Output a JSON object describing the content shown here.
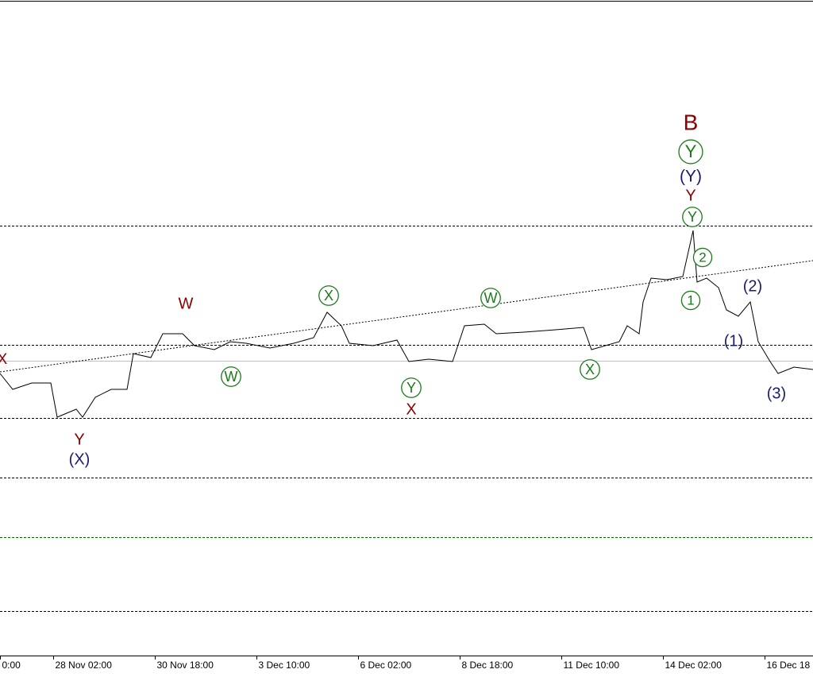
{
  "chart_data": {
    "type": "line",
    "x": [
      0,
      2,
      5,
      8,
      9,
      12,
      13,
      15,
      17.5,
      20,
      21,
      23.75,
      25.625,
      28.75,
      30.625,
      33.75,
      36.25,
      38.75,
      42.5,
      46.25,
      49.375,
      51.5,
      53.75,
      55,
      58.75,
      62.5,
      64.375,
      67.5,
      71.25,
      73.125,
      76.25,
      78.125,
      82.5,
      87.5,
      91.875,
      93.125,
      97.5,
      98.75,
      100.625,
      101.25,
      102.5,
      105,
      107.5,
      109.125,
      109.75,
      111.25,
      113.125,
      114.375,
      116.25,
      118.125,
      119.375,
      121.25,
      122.5,
      125,
      128
    ],
    "values": [
      355,
      335,
      343,
      343,
      300,
      310,
      300,
      325,
      335,
      335,
      380,
      375,
      405,
      405,
      390,
      385,
      395,
      393,
      387,
      393,
      400,
      432,
      415,
      393,
      390,
      397,
      370,
      373,
      370,
      415,
      417,
      405,
      407,
      410,
      413,
      385,
      395,
      415,
      405,
      445,
      475,
      473,
      477,
      535,
      470,
      475,
      463,
      435,
      427,
      445,
      395,
      370,
      355,
      363,
      360
    ],
    "color": "#000000",
    "xlim": [
      0,
      128
    ],
    "ylim": [
      0,
      825
    ],
    "xticks": [
      {
        "value": 0,
        "label": "0:00"
      },
      {
        "value": 8.375,
        "label": "28 Nov 02:00"
      },
      {
        "value": 24.375,
        "label": "30 Nov 18:00"
      },
      {
        "value": 40.375,
        "label": "3 Dec 10:00"
      },
      {
        "value": 56.375,
        "label": "6 Dec 02:00"
      },
      {
        "value": 72.375,
        "label": "8 Dec 18:00"
      },
      {
        "value": 88.375,
        "label": "11 Dec 10:00"
      },
      {
        "value": 104.375,
        "label": "14 Dec 02:00"
      },
      {
        "value": 120.375,
        "label": "16 Dec 18"
      }
    ],
    "levels": [
      {
        "value": 541,
        "style": "dashed",
        "color": "#000000"
      },
      {
        "value": 391,
        "style": "dashed",
        "color": "#000000"
      },
      {
        "value": 371,
        "style": "solid",
        "color": "#c0c0c0"
      },
      {
        "value": 299,
        "style": "dashed",
        "color": "#000000"
      },
      {
        "value": 224,
        "style": "dashed",
        "color": "#000000"
      },
      {
        "value": 149,
        "style": "dashed",
        "color": "#006400"
      },
      {
        "value": 56,
        "style": "dashed",
        "color": "#000000"
      }
    ],
    "trendline": {
      "x": [
        0,
        128
      ],
      "values": [
        357,
        497
      ]
    },
    "annotations": [
      {
        "text": "X",
        "color": "#8b0000",
        "circled": false
      },
      {
        "text": "W",
        "color": "#8b0000",
        "circled": false
      },
      {
        "text": "Y",
        "color": "#8b0000",
        "circled": false
      },
      {
        "text": "(X)",
        "color": "#1a1a6e",
        "circled": false
      },
      {
        "text": "W",
        "color": "#1a7a1a",
        "circled": true
      },
      {
        "text": "X",
        "color": "#1a7a1a",
        "circled": true
      },
      {
        "text": "Y",
        "color": "#1a7a1a",
        "circled": true
      },
      {
        "text": "X",
        "color": "#8b0000",
        "circled": false
      },
      {
        "text": "W",
        "color": "#1a7a1a",
        "circled": true
      },
      {
        "text": "X",
        "color": "#1a7a1a",
        "circled": true
      },
      {
        "text": "B",
        "color": "#8b0000",
        "circled": false
      },
      {
        "text": "Y",
        "color": "#1a7a1a",
        "circled": true
      },
      {
        "text": "(Y)",
        "color": "#1a1a6e",
        "circled": false
      },
      {
        "text": "Y",
        "color": "#8b0000",
        "circled": false
      },
      {
        "text": "Y",
        "color": "#1a7a1a",
        "circled": true
      },
      {
        "text": "2",
        "color": "#1a7a1a",
        "circled": true
      },
      {
        "text": "1",
        "color": "#1a7a1a",
        "circled": true
      },
      {
        "text": "(2)",
        "color": "#1a1a6e",
        "circled": false
      },
      {
        "text": "(1)",
        "color": "#1a1a6e",
        "circled": false
      },
      {
        "text": "(3)",
        "color": "#1a1a6e",
        "circled": false
      }
    ]
  }
}
